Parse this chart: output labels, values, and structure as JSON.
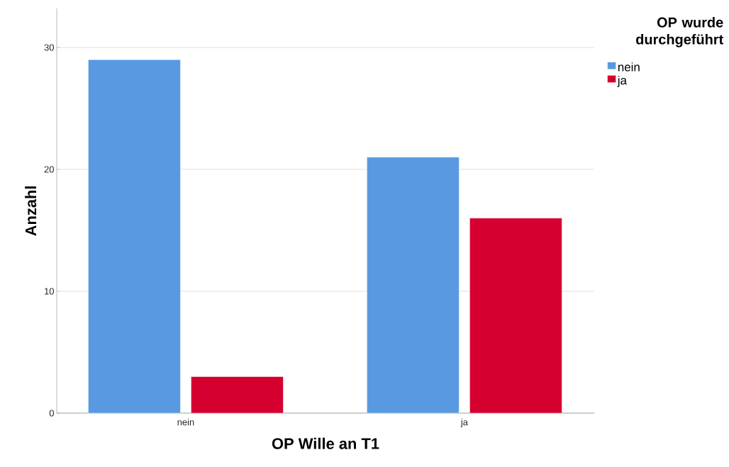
{
  "chart_data": {
    "type": "bar",
    "xlabel": "OP Wille an T1",
    "ylabel": "Anzahl",
    "legend_title": "OP wurde durchgeführt",
    "categories": [
      "nein",
      "ja"
    ],
    "series": [
      {
        "name": "nein",
        "color": "#5899e2",
        "values": [
          29,
          21
        ]
      },
      {
        "name": "ja",
        "color": "#d5002f",
        "values": [
          3,
          16
        ]
      }
    ],
    "ylim": [
      0,
      33.2
    ],
    "yticks": [
      0,
      10,
      20,
      30
    ],
    "grid": "y",
    "legend": "top right"
  }
}
